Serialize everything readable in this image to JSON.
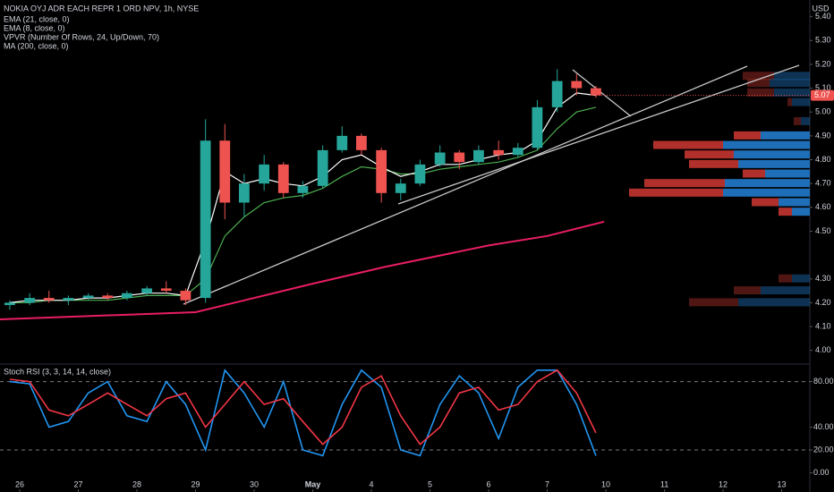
{
  "chart_data": [
    {
      "type": "candlestick",
      "title": "NOKIA OYJ ADR EACH REPR 1 ORD NPV, 1h, NYSE",
      "currency": "USD",
      "x": [
        -0.17,
        0.17,
        0.5,
        0.83,
        1.17,
        1.5,
        1.83,
        2.17,
        2.5,
        2.83,
        3.17,
        3.5,
        3.83,
        4.17,
        4.5,
        4.83,
        5.17,
        5.5,
        5.83,
        6.17,
        6.5,
        6.83,
        7.17,
        7.5,
        7.83,
        8.17,
        8.5,
        8.83,
        9.17,
        9.5,
        9.83
      ],
      "open": [
        4.19,
        4.2,
        4.22,
        4.21,
        4.22,
        4.23,
        4.22,
        4.24,
        4.26,
        4.25,
        4.22,
        4.88,
        4.62,
        4.7,
        4.78,
        4.66,
        4.69,
        4.84,
        4.9,
        4.84,
        4.66,
        4.7,
        4.78,
        4.83,
        4.79,
        4.84,
        4.82,
        4.85,
        5.02,
        5.13,
        5.1
      ],
      "high": [
        4.21,
        4.24,
        4.25,
        4.23,
        4.24,
        4.24,
        4.25,
        4.27,
        4.29,
        4.26,
        4.97,
        4.95,
        4.74,
        4.82,
        4.79,
        4.71,
        4.86,
        4.94,
        4.91,
        4.85,
        4.72,
        4.8,
        4.86,
        4.84,
        4.86,
        4.88,
        4.87,
        5.05,
        5.18,
        5.16,
        5.11
      ],
      "low": [
        4.17,
        4.19,
        4.2,
        4.19,
        4.21,
        4.21,
        4.21,
        4.23,
        4.24,
        4.19,
        4.2,
        4.55,
        4.56,
        4.67,
        4.64,
        4.64,
        4.68,
        4.83,
        4.82,
        4.62,
        4.63,
        4.69,
        4.77,
        4.76,
        4.78,
        4.8,
        4.81,
        4.84,
        5.0,
        5.07,
        5.06
      ],
      "close": [
        4.2,
        4.22,
        4.21,
        4.22,
        4.23,
        4.22,
        4.24,
        4.26,
        4.25,
        4.21,
        4.88,
        4.62,
        4.7,
        4.78,
        4.66,
        4.69,
        4.84,
        4.9,
        4.84,
        4.66,
        4.7,
        4.78,
        4.83,
        4.79,
        4.84,
        4.82,
        4.85,
        5.02,
        5.13,
        5.1,
        5.07
      ],
      "up_color": "#26a69a",
      "down_color": "#ef5350",
      "overlays": [
        {
          "name": "EMA (21, close, 0)",
          "color": "#4caf50",
          "values": [
            4.2,
            4.2,
            4.21,
            4.21,
            4.21,
            4.21,
            4.22,
            4.23,
            4.23,
            4.23,
            4.3,
            4.48,
            4.56,
            4.62,
            4.64,
            4.65,
            4.68,
            4.73,
            4.77,
            4.76,
            4.74,
            4.74,
            4.76,
            4.77,
            4.78,
            4.79,
            4.81,
            4.84,
            4.93,
            5.0,
            5.02
          ]
        },
        {
          "name": "EMA (8, close, 0)",
          "color": "#ffffff",
          "values": [
            4.2,
            4.21,
            4.21,
            4.21,
            4.22,
            4.22,
            4.23,
            4.24,
            4.24,
            4.23,
            4.46,
            4.75,
            4.7,
            4.72,
            4.7,
            4.69,
            4.73,
            4.8,
            4.82,
            4.77,
            4.73,
            4.75,
            4.78,
            4.78,
            4.8,
            4.82,
            4.83,
            4.88,
            5.02,
            5.08,
            5.07
          ]
        }
      ],
      "volume_profile": {
        "name": "VPVR (Number Of Rows, 24, Up/Down, 70)",
        "prices": [
          5.15,
          5.12,
          5.08,
          5.04,
          4.96,
          4.9,
          4.86,
          4.82,
          4.78,
          4.74,
          4.7,
          4.66,
          4.62,
          4.58,
          4.3,
          4.25,
          4.2
        ],
        "up": [
          40,
          45,
          40,
          20,
          10,
          55,
          97,
          85,
          80,
          50,
          95,
          97,
          35,
          20,
          20,
          55,
          80
        ],
        "down": [
          35,
          25,
          30,
          5,
          8,
          30,
          78,
          55,
          55,
          25,
          90,
          105,
          30,
          15,
          15,
          30,
          55
        ],
        "up_color": "#1e6fb8",
        "down_color": "#b2302b",
        "value_area": [
          4.56,
          4.92
        ]
      },
      "ma": {
        "name": "MA (200, close, 0)",
        "color": "#e91e63",
        "x": [
          -0.34,
          3.0,
          5.0,
          6.23,
          8.0,
          9.0,
          9.97
        ],
        "values": [
          4.13,
          4.16,
          4.28,
          4.35,
          4.44,
          4.48,
          4.54
        ]
      },
      "last_price": 5.07,
      "xlim": [
        -0.336,
        13.48
      ],
      "xticks": [
        {
          "value": 0,
          "label": "26"
        },
        {
          "value": 1,
          "label": "27"
        },
        {
          "value": 2,
          "label": "28"
        },
        {
          "value": 3,
          "label": "29"
        },
        {
          "value": 4,
          "label": "30"
        },
        {
          "value": 5,
          "label": "May"
        },
        {
          "value": 6,
          "label": "4"
        },
        {
          "value": 7,
          "label": "5"
        },
        {
          "value": 8,
          "label": "6"
        },
        {
          "value": 9,
          "label": "7"
        },
        {
          "value": 10,
          "label": "10"
        },
        {
          "value": 11,
          "label": "11"
        },
        {
          "value": 12,
          "label": "12"
        },
        {
          "value": 13,
          "label": "13"
        }
      ],
      "ylim": [
        3.95,
        5.47
      ],
      "yticks": [
        {
          "value": 5.4,
          "label": "5.40"
        },
        {
          "value": 5.3,
          "label": "5.30"
        },
        {
          "value": 5.2,
          "label": "5.20"
        },
        {
          "value": 5.1,
          "label": "5.10"
        },
        {
          "value": 5.0,
          "label": "5.00"
        },
        {
          "value": 4.9,
          "label": "4.90"
        },
        {
          "value": 4.8,
          "label": "4.80"
        },
        {
          "value": 4.7,
          "label": "4.70"
        },
        {
          "value": 4.6,
          "label": "4.60"
        },
        {
          "value": 4.5,
          "label": "4.50"
        },
        {
          "value": 4.3,
          "label": "4.30"
        },
        {
          "value": 4.2,
          "label": "4.20"
        },
        {
          "value": 4.1,
          "label": "4.10"
        },
        {
          "value": 4.0,
          "label": "4.00"
        }
      ]
    },
    {
      "type": "line",
      "title": "Stoch RSI (3, 3, 14, 14, close)",
      "x": [
        -0.17,
        0.17,
        0.5,
        0.83,
        1.17,
        1.5,
        1.83,
        2.17,
        2.5,
        2.83,
        3.17,
        3.5,
        3.83,
        4.17,
        4.5,
        4.83,
        5.17,
        5.5,
        5.83,
        6.17,
        6.5,
        6.83,
        7.17,
        7.5,
        7.83,
        8.17,
        8.5,
        8.83,
        9.17,
        9.5,
        9.83
      ],
      "series": [
        {
          "color": "#2196f3",
          "values": [
            80,
            78,
            40,
            45,
            70,
            80,
            50,
            45,
            80,
            60,
            20,
            90,
            70,
            40,
            80,
            20,
            15,
            60,
            90,
            75,
            20,
            15,
            60,
            85,
            70,
            30,
            75,
            90,
            90,
            60,
            15
          ]
        },
        {
          "color": "#f23645",
          "values": [
            82,
            80,
            55,
            50,
            60,
            70,
            60,
            50,
            65,
            70,
            40,
            60,
            80,
            60,
            65,
            45,
            25,
            40,
            75,
            85,
            50,
            25,
            40,
            70,
            75,
            55,
            60,
            80,
            90,
            70,
            35
          ]
        }
      ],
      "bands": [
        80,
        20
      ],
      "ylim": [
        -9,
        93
      ],
      "yticks": [
        {
          "value": 80,
          "label": "80.00"
        },
        {
          "value": 40,
          "label": "40.00"
        },
        {
          "value": 20,
          "label": "20.00"
        },
        {
          "value": 0,
          "label": "0.00"
        }
      ]
    }
  ]
}
